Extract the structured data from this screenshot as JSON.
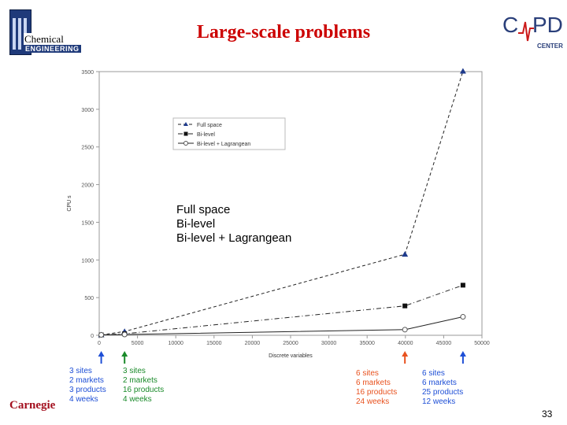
{
  "slide": {
    "title": "Large-scale problems",
    "page_number": "33",
    "left_logo_word1": "Chemical",
    "left_logo_word2": "ENGINEERING",
    "right_logo_letters": [
      "C",
      "PD"
    ],
    "right_logo_sub": "CENTER",
    "bottom_left_logo": "Carnegie"
  },
  "legend_overlay": [
    "Full space",
    "Bi-level",
    "Bi-level + Lagrangean"
  ],
  "chart_data": {
    "type": "line",
    "xlabel": "Discrete variables",
    "ylabel": "CPU s",
    "xlim": [
      0,
      50000
    ],
    "ylim": [
      0,
      3500
    ],
    "x_ticks": [
      0,
      5000,
      10000,
      15000,
      20000,
      25000,
      30000,
      35000,
      40000,
      45000,
      50000
    ],
    "y_ticks": [
      0,
      500,
      1000,
      1500,
      2000,
      2500,
      3000,
      3500
    ],
    "x_tick_labels": [
      "0",
      "5000",
      "10000",
      "15000",
      "20000",
      "25000",
      "30000",
      "35000",
      "40000",
      "45000",
      "50000"
    ],
    "y_tick_labels": [
      "0",
      "500",
      "1000",
      "1500",
      "2000",
      "2500",
      "3000",
      "3500"
    ],
    "legend_placement": "upper-left",
    "legend_entries": [
      "Full space",
      "Bi-level",
      "Bi-level + Lagrangean"
    ],
    "grid": false,
    "series": [
      {
        "name": "Full space",
        "marker": "triangle",
        "line": "dash",
        "x": [
          264,
          3312,
          39936,
          47520
        ],
        "y": [
          5,
          50,
          1075,
          3505
        ]
      },
      {
        "name": "Bi-level",
        "marker": "square",
        "line": "dashdot",
        "x": [
          264,
          3312,
          39936,
          47520
        ],
        "y": [
          5,
          20,
          390,
          665
        ]
      },
      {
        "name": "Bi-level + Lagrangean",
        "marker": "circle",
        "line": "solid",
        "x": [
          264,
          3312,
          39936,
          47520
        ],
        "y": [
          5,
          10,
          75,
          245
        ]
      }
    ]
  },
  "annotations": [
    {
      "color": "blue",
      "x": 264,
      "lines": [
        "3 sites",
        "2 markets",
        "3 products",
        "4 weeks"
      ]
    },
    {
      "color": "green",
      "x": 3312,
      "lines": [
        "3 sites",
        "2 markets",
        "16 products",
        "4 weeks"
      ]
    },
    {
      "color": "orange",
      "x": 39936,
      "lines": [
        "6 sites",
        "6 markets",
        "16 products",
        "24 weeks"
      ]
    },
    {
      "color": "blue",
      "x": 47520,
      "lines": [
        "6 sites",
        "6 markets",
        "25 products",
        "12 weeks"
      ]
    }
  ],
  "colors": {
    "blue": "#1e4fd6",
    "green": "#1a8a2a",
    "orange": "#e8521f"
  }
}
